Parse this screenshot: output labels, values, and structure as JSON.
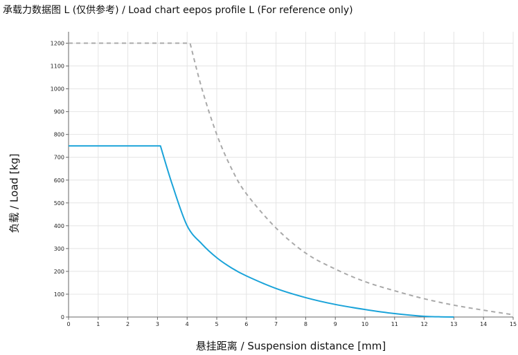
{
  "chart_data": {
    "type": "line",
    "title": "承载力数据图 L (仅供参考) / Load chart eepos profile L (For reference only)",
    "xlabel": "悬挂距离 / Suspension distance [mm]",
    "ylabel": "负载 / Load [kg]",
    "xlim": [
      0,
      15
    ],
    "ylim": [
      0,
      1250
    ],
    "xticks": [
      "0",
      "1",
      "2",
      "3",
      "4",
      "5",
      "6",
      "7",
      "8",
      "9",
      "10",
      "11",
      "12",
      "13",
      "14",
      "15"
    ],
    "yticks": [
      "0",
      "100",
      "200",
      "300",
      "400",
      "500",
      "600",
      "700",
      "800",
      "900",
      "1000",
      "1100",
      "1200"
    ],
    "grid": true,
    "series": [
      {
        "style": "solid",
        "color": "#1aa3d9",
        "x": [
          0,
          3.1,
          3.5,
          4,
          4.5,
          5,
          5.5,
          6,
          7,
          8,
          9,
          10,
          11,
          12,
          12.5,
          13
        ],
        "y": [
          750,
          750,
          580,
          400,
          320,
          260,
          215,
          180,
          125,
          85,
          55,
          33,
          15,
          3,
          1,
          0
        ]
      },
      {
        "style": "dashed",
        "color": "#a9a9a9",
        "x": [
          0,
          4.1,
          4.5,
          5,
          5.5,
          6,
          7,
          8,
          9,
          10,
          11,
          12,
          13,
          14,
          15
        ],
        "y": [
          1200,
          1200,
          1000,
          800,
          650,
          540,
          390,
          280,
          210,
          155,
          115,
          80,
          52,
          30,
          10
        ]
      }
    ]
  }
}
